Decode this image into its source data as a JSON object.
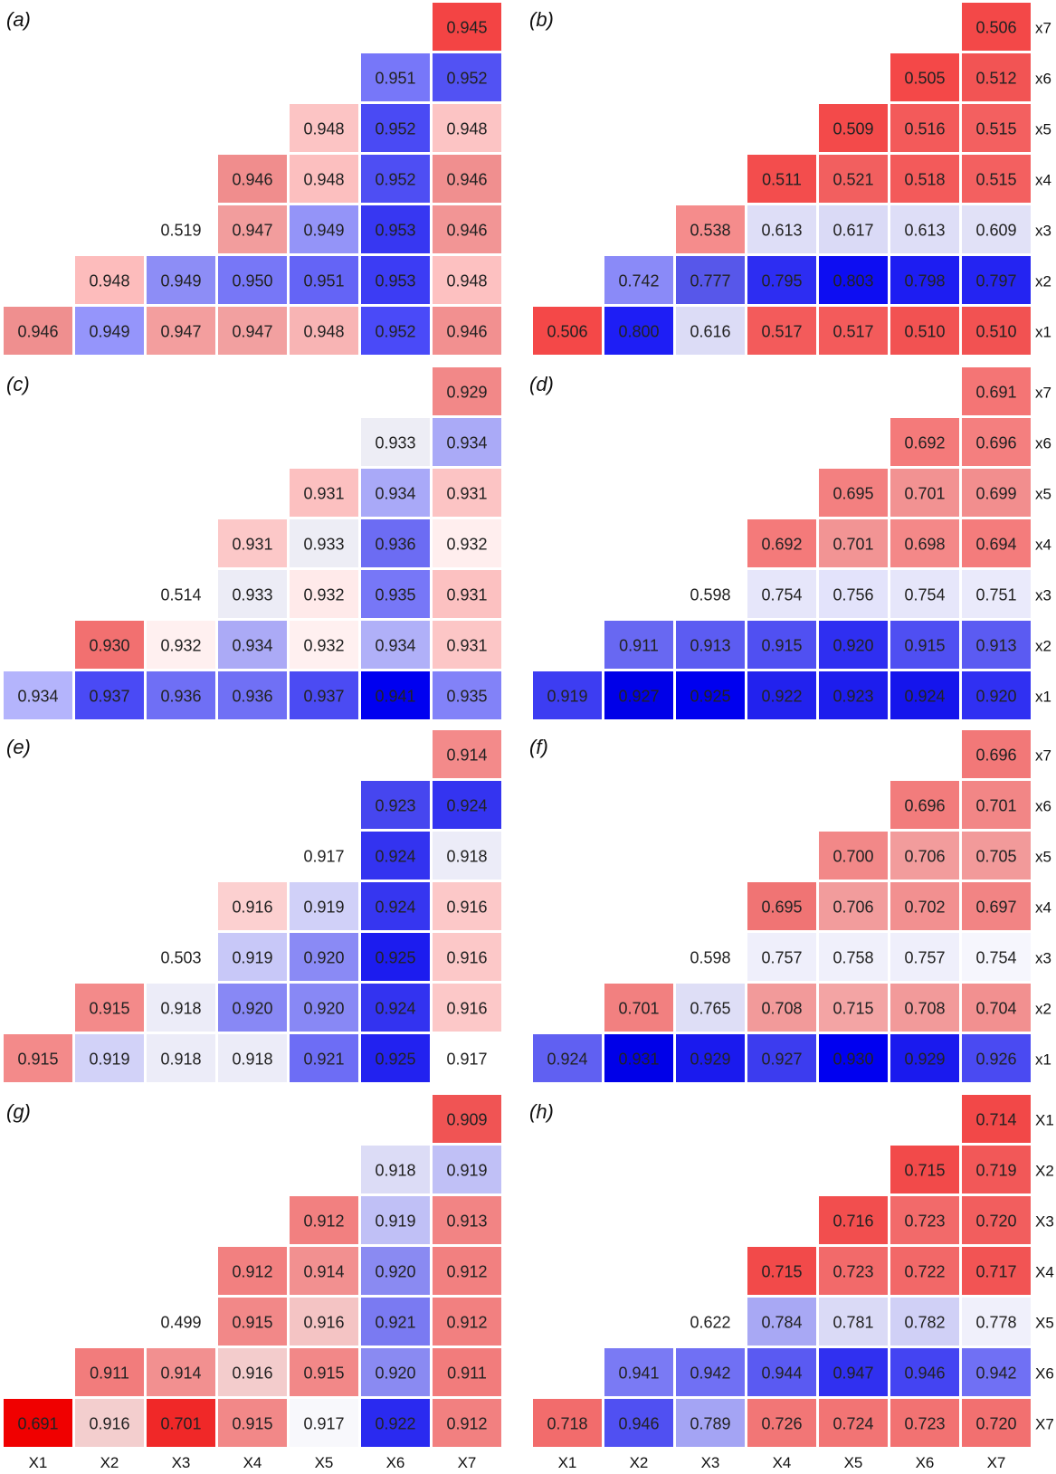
{
  "colors": {
    "low": "#ffffff",
    "red": "#ff0000",
    "blue": "#0000ff",
    "cell_border": "#ffffff",
    "text": "#222222"
  },
  "chart_data": [
    {
      "type": "heatmap",
      "panel_label": "(a)",
      "title": "",
      "color_scale": "diverging red-white-blue",
      "row_labels": [],
      "x_tick_labels": [],
      "cells": [
        [
          0.946,
          0.949,
          0.947,
          0.947,
          0.948,
          0.952,
          0.946
        ],
        [
          null,
          0.948,
          0.949,
          0.95,
          0.951,
          0.953,
          0.948
        ],
        [
          null,
          null,
          0.519,
          0.947,
          0.949,
          0.953,
          0.946
        ],
        [
          null,
          null,
          null,
          0.946,
          0.948,
          0.952,
          0.946
        ],
        [
          null,
          null,
          null,
          null,
          0.948,
          0.952,
          0.948
        ],
        [
          null,
          null,
          null,
          null,
          null,
          0.951,
          0.952
        ],
        [
          null,
          null,
          null,
          null,
          null,
          null,
          0.945
        ]
      ],
      "cell_colors": [
        [
          "#ef8f8f",
          "#9595fb",
          "#f39e9e",
          "#f2a0a0",
          "#f8b4b4",
          "#4a4af8",
          "#f29090"
        ],
        [
          null,
          "#fdbcbc",
          "#8d8df6",
          "#7777f7",
          "#6464f6",
          "#3c3cf4",
          "#fdc1c1"
        ],
        [
          null,
          null,
          "#ffffff",
          "#f29d9d",
          "#9494f8",
          "#3737f2",
          "#f29595"
        ],
        [
          null,
          null,
          null,
          "#f08d8d",
          "#fcbfbf",
          "#4e4ef3",
          "#f08f8f"
        ],
        [
          null,
          null,
          null,
          null,
          "#fcc4c4",
          "#4a4af4",
          "#fcc4c4"
        ],
        [
          null,
          null,
          null,
          null,
          null,
          "#7777f9",
          "#5252f3"
        ],
        [
          null,
          null,
          null,
          null,
          null,
          null,
          "#f34444"
        ]
      ]
    },
    {
      "type": "heatmap",
      "panel_label": "(b)",
      "title": "",
      "color_scale": "diverging red-white-blue",
      "row_labels": [
        "x1",
        "x2",
        "x3",
        "x4",
        "x5",
        "x6",
        "x7"
      ],
      "x_tick_labels": [],
      "cells": [
        [
          0.506,
          0.8,
          0.616,
          0.517,
          0.517,
          0.51,
          0.51
        ],
        [
          null,
          0.742,
          0.777,
          0.795,
          0.803,
          0.798,
          0.797
        ],
        [
          null,
          null,
          0.538,
          0.613,
          0.617,
          0.613,
          0.609
        ],
        [
          null,
          null,
          null,
          0.511,
          0.521,
          0.518,
          0.515
        ],
        [
          null,
          null,
          null,
          null,
          0.509,
          0.516,
          0.515
        ],
        [
          null,
          null,
          null,
          null,
          null,
          0.505,
          0.512
        ],
        [
          null,
          null,
          null,
          null,
          null,
          null,
          0.506
        ]
      ],
      "cell_colors": [
        [
          "#f44848",
          "#1e1ef5",
          "#dcdcf6",
          "#f35b5b",
          "#f35b5b",
          "#f25252",
          "#f25252"
        ],
        [
          null,
          "#8a8af8",
          "#5757ea",
          "#2d2df2",
          "#0d0df2",
          "#1d1df2",
          "#2424f2"
        ],
        [
          null,
          null,
          "#f58c8c",
          "#dedef7",
          "#dadaf6",
          "#dedef7",
          "#e1e1f7"
        ],
        [
          null,
          null,
          null,
          "#f34d4d",
          "#f25f5f",
          "#f35a5a",
          "#f36060"
        ],
        [
          null,
          null,
          null,
          null,
          "#f34a4a",
          "#f35a5a",
          "#f36060"
        ],
        [
          null,
          null,
          null,
          null,
          null,
          "#f44848",
          "#f25454"
        ],
        [
          null,
          null,
          null,
          null,
          null,
          null,
          "#f34848"
        ]
      ]
    },
    {
      "type": "heatmap",
      "panel_label": "(c)",
      "title": "",
      "color_scale": "diverging red-white-blue",
      "row_labels": [],
      "x_tick_labels": [],
      "cells": [
        [
          0.934,
          0.937,
          0.936,
          0.936,
          0.937,
          0.941,
          0.935
        ],
        [
          null,
          0.93,
          0.932,
          0.934,
          0.932,
          0.934,
          0.931
        ],
        [
          null,
          null,
          0.514,
          0.933,
          0.932,
          0.935,
          0.931
        ],
        [
          null,
          null,
          null,
          0.931,
          0.933,
          0.936,
          0.932
        ],
        [
          null,
          null,
          null,
          null,
          0.931,
          0.934,
          0.931
        ],
        [
          null,
          null,
          null,
          null,
          null,
          0.933,
          0.934
        ],
        [
          null,
          null,
          null,
          null,
          null,
          null,
          0.929
        ]
      ],
      "cell_colors": [
        [
          "#b4b4fc",
          "#4a4af5",
          "#6f6ff5",
          "#7070f5",
          "#4b4bf3",
          "#0000f0",
          "#8282f8"
        ],
        [
          null,
          "#f27070",
          "#fff0f0",
          "#abaaf6",
          "#fff0f0",
          "#b0b0f8",
          "#fcc6c6"
        ],
        [
          null,
          null,
          "#ffffff",
          "#ececf6",
          "#ffeaea",
          "#7777f7",
          "#fcc1c1"
        ],
        [
          null,
          null,
          null,
          "#fcc8c8",
          "#ededf5",
          "#6c6cf3",
          "#ffeeee"
        ],
        [
          null,
          null,
          null,
          null,
          "#fcc0c0",
          "#a9a9f8",
          "#fcc4c4"
        ],
        [
          null,
          null,
          null,
          null,
          null,
          "#ededf5",
          "#aaaaf7"
        ],
        [
          null,
          null,
          null,
          null,
          null,
          null,
          "#f28888"
        ]
      ]
    },
    {
      "type": "heatmap",
      "panel_label": "(d)",
      "title": "",
      "color_scale": "diverging red-white-blue",
      "row_labels": [
        "x1",
        "x2",
        "x3",
        "x4",
        "x5",
        "x6",
        "x7"
      ],
      "x_tick_labels": [],
      "cells": [
        [
          0.919,
          0.927,
          0.925,
          0.922,
          0.923,
          0.924,
          0.92
        ],
        [
          null,
          0.911,
          0.913,
          0.915,
          0.92,
          0.915,
          0.913
        ],
        [
          null,
          null,
          0.598,
          0.754,
          0.756,
          0.754,
          0.751
        ],
        [
          null,
          null,
          null,
          0.692,
          0.701,
          0.698,
          0.694
        ],
        [
          null,
          null,
          null,
          null,
          0.695,
          0.701,
          0.699
        ],
        [
          null,
          null,
          null,
          null,
          null,
          0.692,
          0.696
        ],
        [
          null,
          null,
          null,
          null,
          null,
          null,
          0.691
        ]
      ],
      "cell_colors": [
        [
          "#3d3df2",
          "#0000e8",
          "#0000ef",
          "#2222ee",
          "#1d1ded",
          "#1515ec",
          "#3030f2"
        ],
        [
          null,
          "#6868f2",
          "#5c5cf2",
          "#5050f2",
          "#2f2ff1",
          "#4f4ff2",
          "#5b5bf2"
        ],
        [
          null,
          null,
          "#ffffff",
          "#e6e6fa",
          "#e3e3fb",
          "#e6e6fa",
          "#eaeafb"
        ],
        [
          null,
          null,
          null,
          "#f47a7a",
          "#f29494",
          "#f48888",
          "#f47c7c"
        ],
        [
          null,
          null,
          null,
          null,
          "#f38080",
          "#f29292",
          "#f28e8e"
        ],
        [
          null,
          null,
          null,
          null,
          null,
          "#f47a7a",
          "#f47f7f"
        ],
        [
          null,
          null,
          null,
          null,
          null,
          null,
          "#f47575"
        ]
      ]
    },
    {
      "type": "heatmap",
      "panel_label": "(e)",
      "title": "",
      "color_scale": "diverging red-white-blue",
      "row_labels": [],
      "x_tick_labels": [],
      "cells": [
        [
          0.915,
          0.919,
          0.918,
          0.918,
          0.921,
          0.925,
          0.917
        ],
        [
          null,
          0.915,
          0.918,
          0.92,
          0.92,
          0.924,
          0.916
        ],
        [
          null,
          null,
          0.503,
          0.919,
          0.92,
          0.925,
          0.916
        ],
        [
          null,
          null,
          null,
          0.916,
          0.919,
          0.924,
          0.916
        ],
        [
          null,
          null,
          null,
          null,
          0.917,
          0.924,
          0.918
        ],
        [
          null,
          null,
          null,
          null,
          null,
          0.923,
          0.924
        ],
        [
          null,
          null,
          null,
          null,
          null,
          null,
          0.914
        ]
      ],
      "cell_colors": [
        [
          "#f38a8a",
          "#d2d2f8",
          "#ececf8",
          "#ececf8",
          "#6d6df5",
          "#2222f0",
          "#ffffff"
        ],
        [
          null,
          "#f38a8a",
          "#ececf8",
          "#8888f5",
          "#8888f5",
          "#3333f0",
          "#fcc8c8"
        ],
        [
          null,
          null,
          "#ffffff",
          "#c8c8f8",
          "#8a8af5",
          "#1c1cef",
          "#fcc8c8"
        ],
        [
          null,
          null,
          null,
          "#fcd0d0",
          "#d0d0f8",
          "#3636f0",
          "#fcc8c8"
        ],
        [
          null,
          null,
          null,
          null,
          "#ffffff",
          "#3333f0",
          "#ececf8"
        ],
        [
          null,
          null,
          null,
          null,
          null,
          "#4646ef",
          "#3434f0"
        ],
        [
          null,
          null,
          null,
          null,
          null,
          null,
          "#f38a8a"
        ]
      ]
    },
    {
      "type": "heatmap",
      "panel_label": "(f)",
      "title": "",
      "color_scale": "diverging red-white-blue",
      "row_labels": [
        "x1",
        "x2",
        "x3",
        "x4",
        "x5",
        "x6",
        "x7"
      ],
      "x_tick_labels": [],
      "cells": [
        [
          0.924,
          0.931,
          0.929,
          0.927,
          0.93,
          0.929,
          0.926
        ],
        [
          null,
          0.701,
          0.765,
          0.708,
          0.715,
          0.708,
          0.704
        ],
        [
          null,
          null,
          0.598,
          0.757,
          0.758,
          0.757,
          0.754
        ],
        [
          null,
          null,
          null,
          0.695,
          0.706,
          0.702,
          0.697
        ],
        [
          null,
          null,
          null,
          null,
          0.7,
          0.706,
          0.705
        ],
        [
          null,
          null,
          null,
          null,
          null,
          0.696,
          0.701
        ],
        [
          null,
          null,
          null,
          null,
          null,
          null,
          0.696
        ]
      ],
      "cell_colors": [
        [
          "#6060f2",
          "#0000e8",
          "#1a1aee",
          "#3c3cef",
          "#0000f0",
          "#1a1aee",
          "#4a4af2"
        ],
        [
          null,
          "#f28080",
          "#dedef6",
          "#f29a9a",
          "#f3a4a4",
          "#f29a9a",
          "#f29090"
        ],
        [
          null,
          null,
          "#ffffff",
          "#efeffb",
          "#f0f0fb",
          "#efeffb",
          "#f6f6fd"
        ],
        [
          null,
          null,
          null,
          "#f07474",
          "#f29c9c",
          "#f29090",
          "#f28484"
        ],
        [
          null,
          null,
          null,
          null,
          "#f28888",
          "#f29c9c",
          "#f29a9a"
        ],
        [
          null,
          null,
          null,
          null,
          null,
          "#f27c7c",
          "#f28686"
        ],
        [
          null,
          null,
          null,
          null,
          null,
          null,
          "#f27878"
        ]
      ]
    },
    {
      "type": "heatmap",
      "panel_label": "(g)",
      "title": "",
      "color_scale": "diverging red-white-blue",
      "row_labels": [],
      "x_tick_labels": [
        "X1",
        "X2",
        "X3",
        "X4",
        "X5",
        "X6",
        "X7"
      ],
      "cells": [
        [
          0.691,
          0.916,
          0.701,
          0.915,
          0.917,
          0.922,
          0.912
        ],
        [
          null,
          0.911,
          0.914,
          0.916,
          0.915,
          0.92,
          0.911
        ],
        [
          null,
          null,
          0.499,
          0.915,
          0.916,
          0.921,
          0.912
        ],
        [
          null,
          null,
          null,
          0.912,
          0.914,
          0.92,
          0.912
        ],
        [
          null,
          null,
          null,
          null,
          0.912,
          0.919,
          0.913
        ],
        [
          null,
          null,
          null,
          null,
          null,
          0.918,
          0.919
        ],
        [
          null,
          null,
          null,
          null,
          null,
          null,
          0.909
        ]
      ],
      "cell_colors": [
        [
          "#f00000",
          "#f3cece",
          "#f02828",
          "#f28888",
          "#f8f8fc",
          "#2a2af0",
          "#f28080"
        ],
        [
          null,
          "#f27c7c",
          "#f29090",
          "#f3cccc",
          "#f28888",
          "#8a8af2",
          "#f27c7c"
        ],
        [
          null,
          null,
          "#ffffff",
          "#f28888",
          "#f4c4c4",
          "#7a7af2",
          "#f28080"
        ],
        [
          null,
          null,
          null,
          "#f28080",
          "#f29090",
          "#8a8af2",
          "#f28080"
        ],
        [
          null,
          null,
          null,
          null,
          "#f28080",
          "#c0c0f6",
          "#f28484"
        ],
        [
          null,
          null,
          null,
          null,
          null,
          "#dcdcf6",
          "#c0c0f6"
        ],
        [
          null,
          null,
          null,
          null,
          null,
          null,
          "#f05454"
        ]
      ]
    },
    {
      "type": "heatmap",
      "panel_label": "(h)",
      "title": "",
      "color_scale": "diverging red-white-blue",
      "row_labels": [
        "X7",
        "X6",
        "X5",
        "X4",
        "X3",
        "X2",
        "X1"
      ],
      "x_tick_labels": [
        "X1",
        "X2",
        "X3",
        "X4",
        "X5",
        "X6",
        "X7"
      ],
      "cells": [
        [
          0.718,
          0.946,
          0.789,
          0.726,
          0.724,
          0.723,
          0.72
        ],
        [
          null,
          0.941,
          0.942,
          0.944,
          0.947,
          0.946,
          0.942
        ],
        [
          null,
          null,
          0.622,
          0.784,
          0.781,
          0.782,
          0.778
        ],
        [
          null,
          null,
          null,
          0.715,
          0.723,
          0.722,
          0.717
        ],
        [
          null,
          null,
          null,
          null,
          0.716,
          0.723,
          0.72
        ],
        [
          null,
          null,
          null,
          null,
          null,
          0.715,
          0.719
        ],
        [
          null,
          null,
          null,
          null,
          null,
          null,
          0.714
        ]
      ],
      "cell_colors": [
        [
          "#f26c6c",
          "#5050f2",
          "#a4a4f4",
          "#f27676",
          "#f27474",
          "#f27272",
          "#f27070"
        ],
        [
          null,
          "#7a7af4",
          "#7070f4",
          "#5a5af2",
          "#3030f0",
          "#4444f2",
          "#7070f4"
        ],
        [
          null,
          null,
          "#ffffff",
          "#a8a8f4",
          "#dadaf6",
          "#d0d0f6",
          "#f0f0fb"
        ],
        [
          null,
          null,
          null,
          "#f24a4a",
          "#f26a6a",
          "#f26868",
          "#f25454"
        ],
        [
          null,
          null,
          null,
          null,
          "#f24e4e",
          "#f26a6a",
          "#f25e5e"
        ],
        [
          null,
          null,
          null,
          null,
          null,
          "#f24a4a",
          "#f25858"
        ],
        [
          null,
          null,
          null,
          null,
          null,
          null,
          "#f24848"
        ]
      ]
    }
  ]
}
